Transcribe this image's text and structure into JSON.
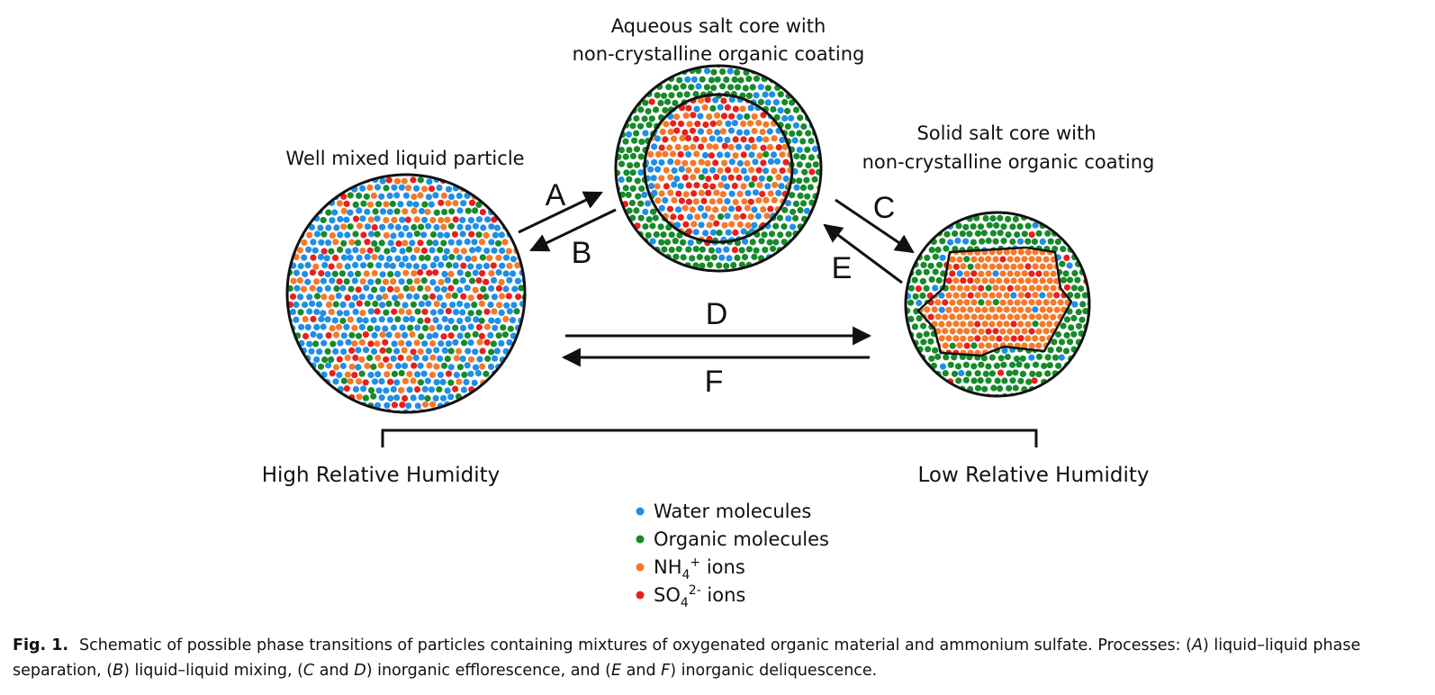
{
  "titles": {
    "mixed": "Well mixed liquid particle",
    "aqueous_line1": "Aqueous salt core with",
    "aqueous_line2": "non-crystalline organic coating",
    "solid_line1": "Solid salt core with",
    "solid_line2": "non-crystalline organic coating"
  },
  "processes": {
    "A": "A",
    "B": "B",
    "C": "C",
    "D": "D",
    "E": "E",
    "F": "F"
  },
  "humidity": {
    "high": "High Relative Humidity",
    "low": "Low Relative Humidity"
  },
  "legend": {
    "water": "Water molecules",
    "organic": "Organic molecules",
    "nh4_base": "NH",
    "nh4_sub": "4",
    "nh4_sup": "+",
    "nh4_tail": " ions",
    "so4_base": "SO",
    "so4_sub": "4",
    "so4_sup": "2-",
    "so4_tail": " ions"
  },
  "colors": {
    "water": "#1f8ee6",
    "organic": "#178a2a",
    "nh4": "#f5792a",
    "so4": "#e8201c",
    "outline": "#111111"
  },
  "caption": {
    "fig_label": "Fig. 1.",
    "p1": "Schematic of possible phase transitions of particles containing mixtures of oxygenated organic material and ammonium sulfate. Processes: (",
    "iA": "A",
    "p2": ") liquid–liquid phase separation, (",
    "iB": "B",
    "p3": ") liquid–liquid mixing, (",
    "iC": "C",
    "p4": " and ",
    "iD": "D",
    "p5": ") inorganic efflorescence, and (",
    "iE": "E",
    "p6": " and ",
    "iF": "F",
    "p7": ") inorganic deliquescence."
  }
}
